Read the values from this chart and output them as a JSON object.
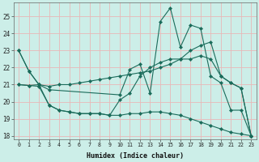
{
  "xlabel": "Humidex (Indice chaleur)",
  "ylabel": "",
  "bg_color": "#cceee8",
  "grid_color": "#aaddcc",
  "line_color": "#1a6b5a",
  "xlim": [
    -0.5,
    23.5
  ],
  "ylim": [
    17.8,
    25.8
  ],
  "yticks": [
    18,
    19,
    20,
    21,
    22,
    23,
    24,
    25
  ],
  "xticks": [
    0,
    1,
    2,
    3,
    4,
    5,
    6,
    7,
    8,
    9,
    10,
    11,
    12,
    13,
    14,
    15,
    16,
    17,
    18,
    19,
    20,
    21,
    22,
    23
  ],
  "series": [
    {
      "x": [
        0,
        1,
        2,
        3,
        10,
        11,
        12,
        13,
        14,
        15,
        16,
        17,
        18,
        19,
        20,
        21,
        22,
        23
      ],
      "y": [
        23.0,
        21.8,
        21.0,
        20.7,
        20.4,
        21.9,
        22.2,
        20.5,
        24.7,
        25.5,
        23.2,
        24.5,
        24.3,
        21.5,
        21.1,
        19.5,
        19.5,
        18.0
      ]
    },
    {
      "x": [
        0,
        1,
        2,
        3,
        4,
        5,
        6,
        7,
        8,
        9,
        10,
        11,
        12,
        13,
        14,
        15,
        16,
        17,
        18,
        19,
        20,
        21,
        22,
        23
      ],
      "y": [
        21.0,
        20.95,
        21.0,
        20.9,
        21.0,
        21.0,
        21.1,
        21.2,
        21.3,
        21.4,
        21.5,
        21.6,
        21.7,
        21.8,
        22.0,
        22.2,
        22.5,
        23.0,
        23.3,
        23.5,
        21.5,
        21.1,
        20.8,
        18.0
      ]
    },
    {
      "x": [
        0,
        1,
        2,
        3,
        4,
        5,
        6,
        7,
        8,
        9,
        10,
        11,
        12,
        13,
        14,
        15,
        16,
        17,
        18,
        19,
        20,
        21,
        22,
        23
      ],
      "y": [
        21.0,
        20.95,
        20.9,
        19.8,
        19.5,
        19.4,
        19.3,
        19.3,
        19.3,
        19.2,
        19.2,
        19.3,
        19.3,
        19.4,
        19.4,
        19.3,
        19.2,
        19.0,
        18.8,
        18.6,
        18.4,
        18.2,
        18.1,
        18.0
      ]
    },
    {
      "x": [
        0,
        1,
        2,
        3,
        4,
        5,
        6,
        7,
        8,
        9,
        10,
        11,
        12,
        13,
        14,
        15,
        16,
        17,
        18,
        19,
        20,
        21,
        22,
        23
      ],
      "y": [
        23.0,
        21.8,
        21.0,
        19.8,
        19.5,
        19.4,
        19.3,
        19.3,
        19.3,
        19.2,
        20.1,
        20.5,
        21.5,
        22.0,
        22.3,
        22.5,
        22.5,
        22.5,
        22.7,
        22.5,
        21.5,
        21.1,
        20.8,
        18.0
      ]
    }
  ]
}
